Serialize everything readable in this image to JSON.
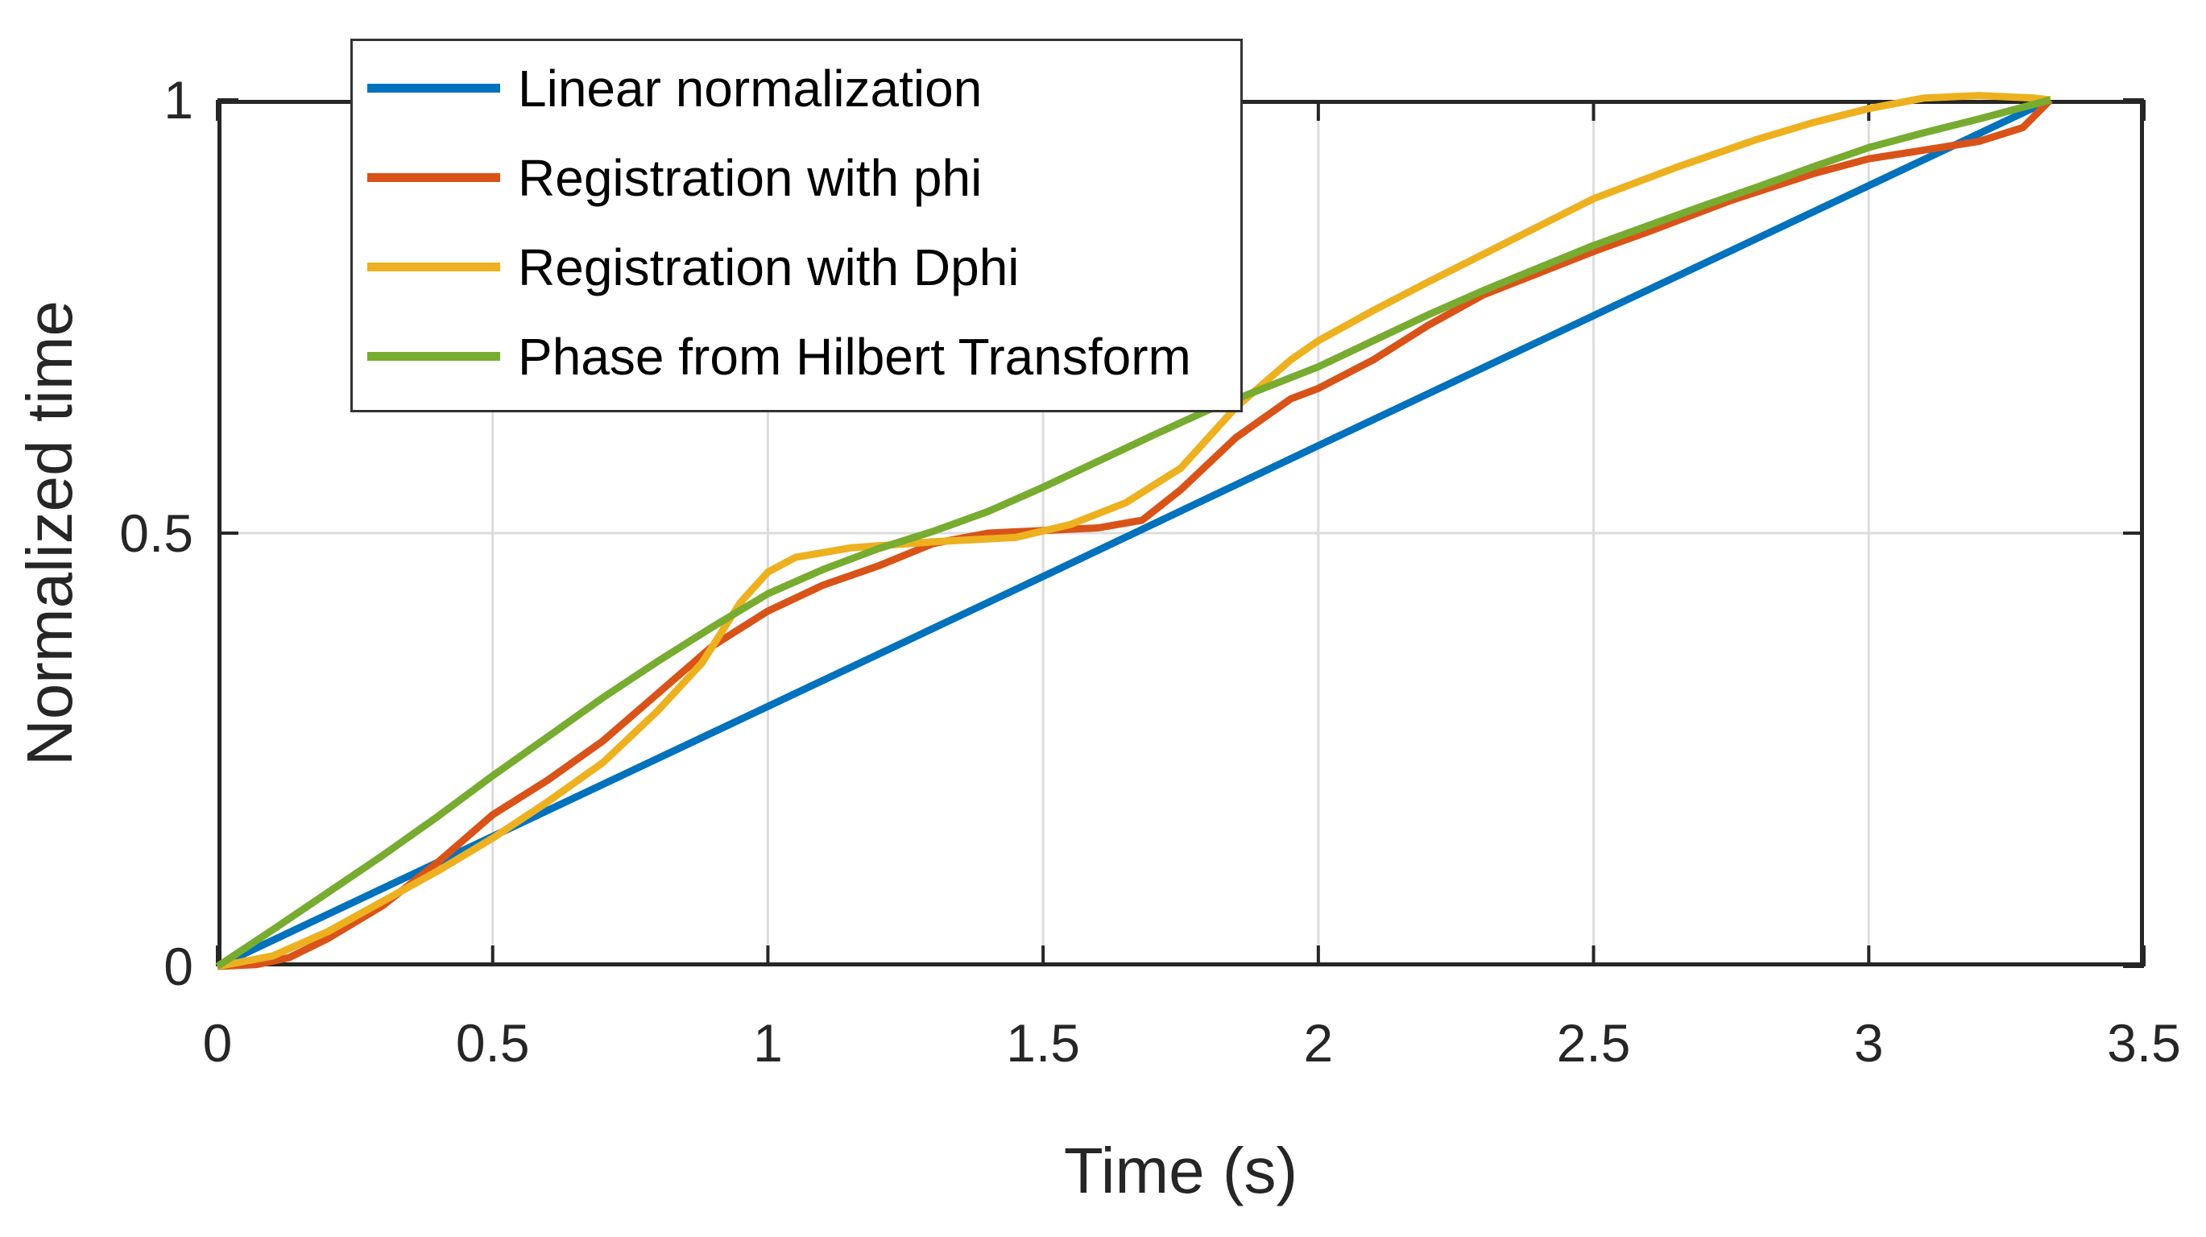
{
  "figure": {
    "title": ""
  },
  "chart_data": {
    "type": "line",
    "title": "",
    "xlabel": "Time (s)",
    "ylabel": "Normalized time",
    "xlim": [
      0,
      3.5
    ],
    "ylim": [
      0,
      1
    ],
    "grid": "on",
    "grid_x_values": [
      0.5,
      1,
      1.5,
      2,
      2.5,
      3
    ],
    "grid_y_values": [
      0.5
    ],
    "x_ticks": [
      0,
      0.5,
      1,
      1.5,
      2,
      2.5,
      3,
      3.5
    ],
    "x_tick_labels": [
      "0",
      "0.5",
      "1",
      "1.5",
      "2",
      "2.5",
      "3",
      "3.5"
    ],
    "y_ticks": [
      0,
      0.5,
      1
    ],
    "y_tick_labels": [
      "0",
      "0.5",
      "1"
    ],
    "legend_position": "top-left",
    "axis_color": "#262626",
    "grid_color": "#dcdcdc",
    "series": [
      {
        "name": "Linear normalization",
        "color": "#0072BD",
        "points": [
          [
            0,
            0
          ],
          [
            0.5,
            0.15
          ],
          [
            1,
            0.3
          ],
          [
            1.5,
            0.45
          ],
          [
            2,
            0.601
          ],
          [
            2.5,
            0.751
          ],
          [
            3,
            0.901
          ],
          [
            3.33,
            1
          ]
        ]
      },
      {
        "name": "Registration with phi",
        "color": "#D95319",
        "points": [
          [
            0,
            0
          ],
          [
            0.07,
            0.002
          ],
          [
            0.13,
            0.01
          ],
          [
            0.2,
            0.032
          ],
          [
            0.3,
            0.07
          ],
          [
            0.4,
            0.12
          ],
          [
            0.5,
            0.175
          ],
          [
            0.6,
            0.215
          ],
          [
            0.7,
            0.26
          ],
          [
            0.8,
            0.315
          ],
          [
            0.9,
            0.37
          ],
          [
            1.0,
            0.41
          ],
          [
            1.1,
            0.44
          ],
          [
            1.2,
            0.462
          ],
          [
            1.3,
            0.488
          ],
          [
            1.4,
            0.5
          ],
          [
            1.5,
            0.503
          ],
          [
            1.6,
            0.506
          ],
          [
            1.68,
            0.515
          ],
          [
            1.75,
            0.55
          ],
          [
            1.85,
            0.61
          ],
          [
            1.95,
            0.655
          ],
          [
            2.0,
            0.667
          ],
          [
            2.1,
            0.7
          ],
          [
            2.2,
            0.74
          ],
          [
            2.3,
            0.775
          ],
          [
            2.4,
            0.8
          ],
          [
            2.5,
            0.825
          ],
          [
            2.6,
            0.848
          ],
          [
            2.75,
            0.884
          ],
          [
            2.9,
            0.915
          ],
          [
            3.0,
            0.932
          ],
          [
            3.1,
            0.942
          ],
          [
            3.2,
            0.952
          ],
          [
            3.28,
            0.968
          ],
          [
            3.33,
            1.0
          ]
        ]
      },
      {
        "name": "Registration with Dphi",
        "color": "#EDB120",
        "points": [
          [
            0,
            0
          ],
          [
            0.1,
            0.012
          ],
          [
            0.2,
            0.04
          ],
          [
            0.3,
            0.075
          ],
          [
            0.4,
            0.11
          ],
          [
            0.5,
            0.148
          ],
          [
            0.6,
            0.19
          ],
          [
            0.7,
            0.235
          ],
          [
            0.8,
            0.295
          ],
          [
            0.88,
            0.35
          ],
          [
            0.95,
            0.42
          ],
          [
            1.0,
            0.455
          ],
          [
            1.05,
            0.472
          ],
          [
            1.15,
            0.483
          ],
          [
            1.3,
            0.49
          ],
          [
            1.45,
            0.495
          ],
          [
            1.55,
            0.51
          ],
          [
            1.65,
            0.535
          ],
          [
            1.75,
            0.575
          ],
          [
            1.85,
            0.645
          ],
          [
            1.95,
            0.7
          ],
          [
            2.0,
            0.722
          ],
          [
            2.1,
            0.757
          ],
          [
            2.2,
            0.79
          ],
          [
            2.35,
            0.838
          ],
          [
            2.5,
            0.886
          ],
          [
            2.65,
            0.922
          ],
          [
            2.8,
            0.955
          ],
          [
            2.9,
            0.974
          ],
          [
            3.0,
            0.99
          ],
          [
            3.1,
            1.002
          ],
          [
            3.2,
            1.005
          ],
          [
            3.3,
            1.002
          ],
          [
            3.33,
            1.0
          ]
        ]
      },
      {
        "name": "Phase from Hilbert Transform",
        "color": "#77AC30",
        "points": [
          [
            0,
            0
          ],
          [
            0.1,
            0.042
          ],
          [
            0.2,
            0.085
          ],
          [
            0.3,
            0.128
          ],
          [
            0.4,
            0.173
          ],
          [
            0.5,
            0.22
          ],
          [
            0.6,
            0.265
          ],
          [
            0.7,
            0.31
          ],
          [
            0.8,
            0.352
          ],
          [
            0.9,
            0.392
          ],
          [
            1.0,
            0.43
          ],
          [
            1.1,
            0.458
          ],
          [
            1.2,
            0.482
          ],
          [
            1.3,
            0.502
          ],
          [
            1.4,
            0.525
          ],
          [
            1.5,
            0.553
          ],
          [
            1.6,
            0.583
          ],
          [
            1.7,
            0.613
          ],
          [
            1.8,
            0.642
          ],
          [
            1.9,
            0.667
          ],
          [
            2.0,
            0.692
          ],
          [
            2.1,
            0.722
          ],
          [
            2.2,
            0.752
          ],
          [
            2.3,
            0.78
          ],
          [
            2.4,
            0.806
          ],
          [
            2.5,
            0.832
          ],
          [
            2.6,
            0.855
          ],
          [
            2.7,
            0.878
          ],
          [
            2.8,
            0.9
          ],
          [
            2.9,
            0.923
          ],
          [
            3.0,
            0.945
          ],
          [
            3.1,
            0.962
          ],
          [
            3.2,
            0.978
          ],
          [
            3.33,
            1.0
          ]
        ]
      }
    ]
  }
}
